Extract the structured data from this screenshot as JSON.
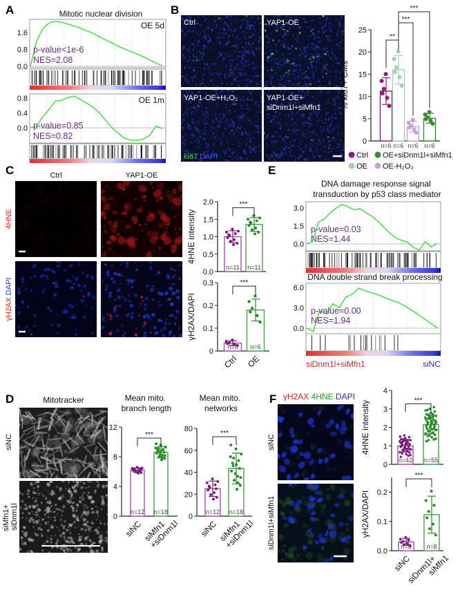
{
  "panels": {
    "A": {
      "label": "A",
      "title": "Mitotic nuclear division"
    },
    "B": {
      "label": "B",
      "tiles": [
        "Ctrl",
        "YAP1-OE",
        "YAP1-OE+H₂O₂",
        "YAP1-OE+",
        "siDnm1l+siMfn1"
      ],
      "stain": {
        "ki67": "ki67",
        "dapi": "DAPI"
      },
      "legend": [
        {
          "label": "Ctrl",
          "color": "#8a1c7c"
        },
        {
          "label": "OE+siDnm1l+siMfn1",
          "color": "#3a8a34"
        },
        {
          "label": "OE",
          "color": "#a9cdb1"
        },
        {
          "label": "OE-H₂O₂",
          "color": "#c5a3da"
        }
      ]
    },
    "C": {
      "label": "C",
      "columns": [
        "Ctrl",
        "YAP1-OE"
      ],
      "row1": "4HNE",
      "row2_a": "γH2AX",
      "row2_b": "DAPI"
    },
    "D": {
      "label": "D",
      "title": "Mitotracker",
      "row1": "siNC",
      "row2_a": "siMfn1+",
      "row2_b": "siDnm1l",
      "chart1_title": [
        "Mean mito.",
        "branch length"
      ],
      "chart2_title": [
        "Mean mito.",
        "networks"
      ]
    },
    "E": {
      "label": "E"
    },
    "F": {
      "label": "F",
      "stain_a": "γH2AX",
      "stain_b": "4HNE",
      "stain_c": "DAPI",
      "row1": "siNC",
      "row2": "siDnm1l+siMfn1"
    }
  },
  "colors": {
    "ctrl_outline": "#a64bb3",
    "ctrl_points": "#7b1f7c",
    "treat_outline": "#46a046",
    "treat_points": "#258a25",
    "gsea_curve": "#3ddc3d",
    "annotation": "#6a2c86"
  },
  "chart_data": [
    {
      "id": "A1",
      "type": "line",
      "title": "Mitotic nuclear division",
      "tag": "OE 5d",
      "pvalue": "p-value<1e-6",
      "nes": "NES=2.08",
      "yticks": [
        1.6,
        0.8,
        0.0
      ],
      "ytick_labels": [
        "1.6",
        "0.8",
        "0.0"
      ],
      "ylim": [
        -0.1,
        2.25
      ],
      "es": [
        0,
        1.2,
        1.8,
        2.05,
        2.12,
        2.08,
        2.0,
        1.9,
        1.8,
        1.68,
        1.55,
        1.4,
        1.25,
        1.1,
        0.95,
        0.82,
        0.7,
        0.58,
        0.45,
        0.3,
        0.15,
        0.02
      ]
    },
    {
      "id": "A2",
      "type": "line",
      "tag": "OE 1m",
      "pvalue": "p-value=0.85",
      "nes": "NES=0.82",
      "yticks": [
        0.8,
        0.4,
        0.0
      ],
      "ytick_labels": [
        "0.8",
        "0.4",
        "0.0"
      ],
      "ylim": [
        -0.42,
        0.92
      ],
      "es": [
        0,
        0.05,
        0.3,
        0.5,
        0.72,
        0.74,
        0.82,
        0.85,
        0.76,
        0.66,
        0.55,
        0.4,
        0.2,
        0.0,
        -0.15,
        -0.28,
        -0.33,
        -0.34,
        -0.3,
        -0.2,
        0.05,
        -0.02
      ]
    },
    {
      "id": "B",
      "type": "bar",
      "ylabel": "% ki67+ CMs",
      "yticks": [
        0,
        5,
        10,
        15,
        20,
        25
      ],
      "ylim": [
        0,
        25
      ],
      "categories": [
        "Ctrl",
        "OE",
        "OE-H₂O₂",
        "OE+siDnm1l+siMfn1"
      ],
      "means": [
        11.2,
        16.0,
        3.2,
        5.1
      ],
      "sd": [
        3.0,
        3.2,
        1.2,
        1.1
      ],
      "n": [
        6,
        6,
        6,
        6
      ],
      "n_labels": [
        "n=6",
        "n=6",
        "n=6",
        "n=6"
      ],
      "colors": [
        "#8a1c7c",
        "#a9cdb1",
        "#c5a3da",
        "#3a8a34"
      ],
      "significance": [
        {
          "from": 0,
          "to": 1,
          "label": "**"
        },
        {
          "from": 1,
          "to": 2,
          "label": "***"
        },
        {
          "from": 1,
          "to": 3,
          "label": "***"
        }
      ]
    },
    {
      "id": "C1",
      "type": "bar",
      "ylabel": "4HNE intensity",
      "yticks": [
        0,
        0.5,
        1.0,
        1.5,
        2.0
      ],
      "ytick_labels": [
        "0.0",
        "0.5",
        "1.0",
        "1.5",
        "2.0"
      ],
      "ylim": [
        0,
        2.0
      ],
      "categories": [],
      "means": [
        1.0,
        1.35
      ],
      "sd": [
        0.17,
        0.2
      ],
      "n": [
        11,
        11
      ],
      "n_labels": [
        "n=11",
        "n=11"
      ],
      "significance": [
        {
          "from": 0,
          "to": 1,
          "label": "***"
        }
      ]
    },
    {
      "id": "C2",
      "type": "bar",
      "ylabel": "γH2AX/DAPI",
      "yticks": [
        0,
        0.1,
        0.2,
        0.3
      ],
      "ytick_labels": [
        "0",
        "0.1",
        "0.2",
        "0.3"
      ],
      "ylim": [
        0,
        0.3
      ],
      "categories": [
        "Ctrl",
        "OE"
      ],
      "means": [
        0.035,
        0.18
      ],
      "sd": [
        0.01,
        0.048
      ],
      "n": [
        6,
        6
      ],
      "n_labels": [
        "n=6",
        "n=6"
      ],
      "significance": [
        {
          "from": 0,
          "to": 1,
          "label": "***"
        }
      ]
    },
    {
      "id": "D1",
      "type": "bar",
      "title": "Mean mito. branch length",
      "yticks": [
        0,
        4,
        8,
        12
      ],
      "ytick_labels": [
        "0",
        "4",
        "8",
        "12"
      ],
      "ylim": [
        0,
        12
      ],
      "categories": [
        "siNC",
        "siMfn1\n+siDnm1l"
      ],
      "means": [
        6.2,
        8.6
      ],
      "sd": [
        0.3,
        0.75
      ],
      "n": [
        12,
        18
      ],
      "n_labels": [
        "n=12",
        "n=18"
      ],
      "significance": [
        {
          "from": 0,
          "to": 1,
          "label": "***"
        }
      ]
    },
    {
      "id": "D2",
      "type": "bar",
      "title": "Mean mito. networks",
      "yticks": [
        0,
        20,
        40,
        60,
        80
      ],
      "ytick_labels": [
        "0",
        "20",
        "40",
        "60",
        "80"
      ],
      "ylim": [
        0,
        80
      ],
      "categories": [
        "siNC",
        "siMfn1\n+siDnm1l"
      ],
      "means": [
        25,
        43.5
      ],
      "sd": [
        7,
        14
      ],
      "n": [
        12,
        18
      ],
      "n_labels": [
        "n=12",
        "n=18"
      ],
      "significance": [
        {
          "from": 0,
          "to": 1,
          "label": "***"
        }
      ]
    },
    {
      "id": "E1",
      "type": "line",
      "title": "DNA damage response signal\ntransduction by p53 class mediator",
      "pvalue": "p-value=0.03",
      "nes": "NES=1.44",
      "yticks": [
        3.0,
        1.5,
        0.0
      ],
      "ytick_labels": [
        "3.0",
        "1.5",
        "0.0"
      ],
      "ylim": [
        -0.6,
        3.5
      ],
      "es": [
        0,
        0.2,
        1.8,
        2.1,
        2.6,
        3.0,
        3.3,
        3.1,
        2.85,
        2.95,
        2.6,
        2.3,
        1.9,
        1.4,
        0.9,
        0.5,
        0.3,
        0.15,
        -0.3,
        -0.5,
        0.2,
        -0.25,
        0.05
      ]
    },
    {
      "id": "E2",
      "type": "line",
      "title": "DNA double strand break processing",
      "pvalue": "p-value=0.00",
      "nes": "NES=1.94",
      "yticks": [
        6.0,
        3.0,
        0.0
      ],
      "ytick_labels": [
        "6.0",
        "3.0",
        "0.0"
      ],
      "ylim": [
        -0.8,
        6.6
      ],
      "es": [
        0,
        -0.5,
        2.6,
        2.1,
        3.6,
        3.0,
        4.6,
        5.0,
        5.9,
        5.5,
        5.2,
        4.9,
        4.5,
        4.1,
        3.8,
        3.3,
        2.7,
        2.1,
        1.4,
        0.7,
        0.05
      ],
      "rank_labels": {
        "left": "siDnm1l+siMfn1",
        "right": "siNC"
      }
    },
    {
      "id": "F1",
      "type": "bar",
      "ylabel": "4HNE intensity",
      "yticks": [
        0,
        1,
        2,
        3,
        4
      ],
      "ytick_labels": [
        "0",
        "1",
        "2",
        "3",
        "4"
      ],
      "ylim": [
        0,
        4
      ],
      "categories": [],
      "means": [
        1.0,
        2.15
      ],
      "sd": [
        0.33,
        0.5
      ],
      "n": [
        42,
        55
      ],
      "n_labels": [
        "n=42",
        "n=55"
      ],
      "significance": [
        {
          "from": 0,
          "to": 1,
          "label": "***"
        }
      ]
    },
    {
      "id": "F2",
      "type": "bar",
      "ylabel": "γH2AX/DAPI",
      "yticks": [
        0,
        0.1,
        0.2
      ],
      "ytick_labels": [
        "0.0",
        "0.1",
        "0.2"
      ],
      "ylim": [
        0,
        0.25
      ],
      "categories": [
        "siNC",
        "siDnm1l+\nsiMfn1"
      ],
      "means": [
        0.03,
        0.123
      ],
      "sd": [
        0.012,
        0.063
      ],
      "n": [
        8,
        8
      ],
      "n_labels": [
        "n=8",
        "n=8"
      ],
      "significance": [
        {
          "from": 0,
          "to": 1,
          "label": "***"
        }
      ]
    }
  ]
}
